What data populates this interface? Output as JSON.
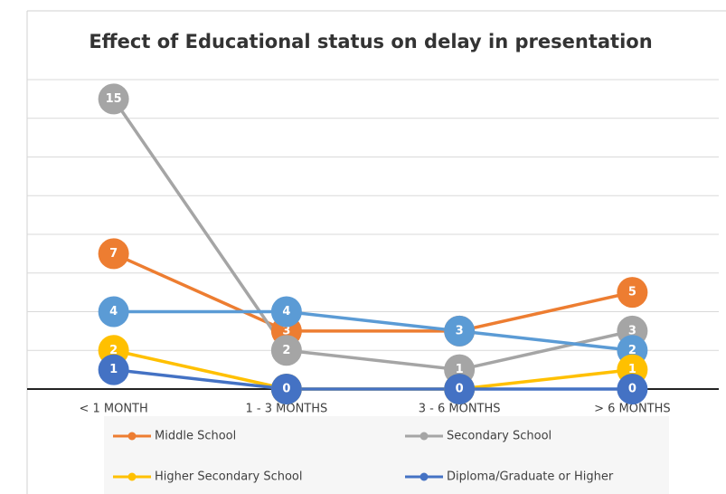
{
  "chart_data": {
    "type": "line",
    "title": "Effect of Educational status on delay in presentation",
    "categories": [
      "< 1 MONTH",
      "1 - 3 MONTHS",
      "3 - 6 MONTHS",
      "> 6 MONTHS"
    ],
    "series": [
      {
        "name": "Middle School",
        "color": "#ED7D31",
        "values": [
          7,
          3,
          3,
          5
        ]
      },
      {
        "name": "Secondary School",
        "color": "#A5A5A5",
        "values": [
          15,
          2,
          1,
          3
        ]
      },
      {
        "color": "#5B9BD5",
        "values": [
          4,
          4,
          3,
          2
        ]
      },
      {
        "name": "Higher Secondary School",
        "color": "#FFC000",
        "values": [
          2,
          0,
          0,
          1
        ]
      },
      {
        "name": "Diploma/Graduate or Higher",
        "color": "#4472C4",
        "values": [
          1,
          0,
          0,
          0
        ]
      }
    ],
    "ylim": [
      0,
      16
    ],
    "yticks": [
      0,
      2,
      4,
      6,
      8,
      10,
      12,
      14,
      16
    ],
    "grid": true
  }
}
